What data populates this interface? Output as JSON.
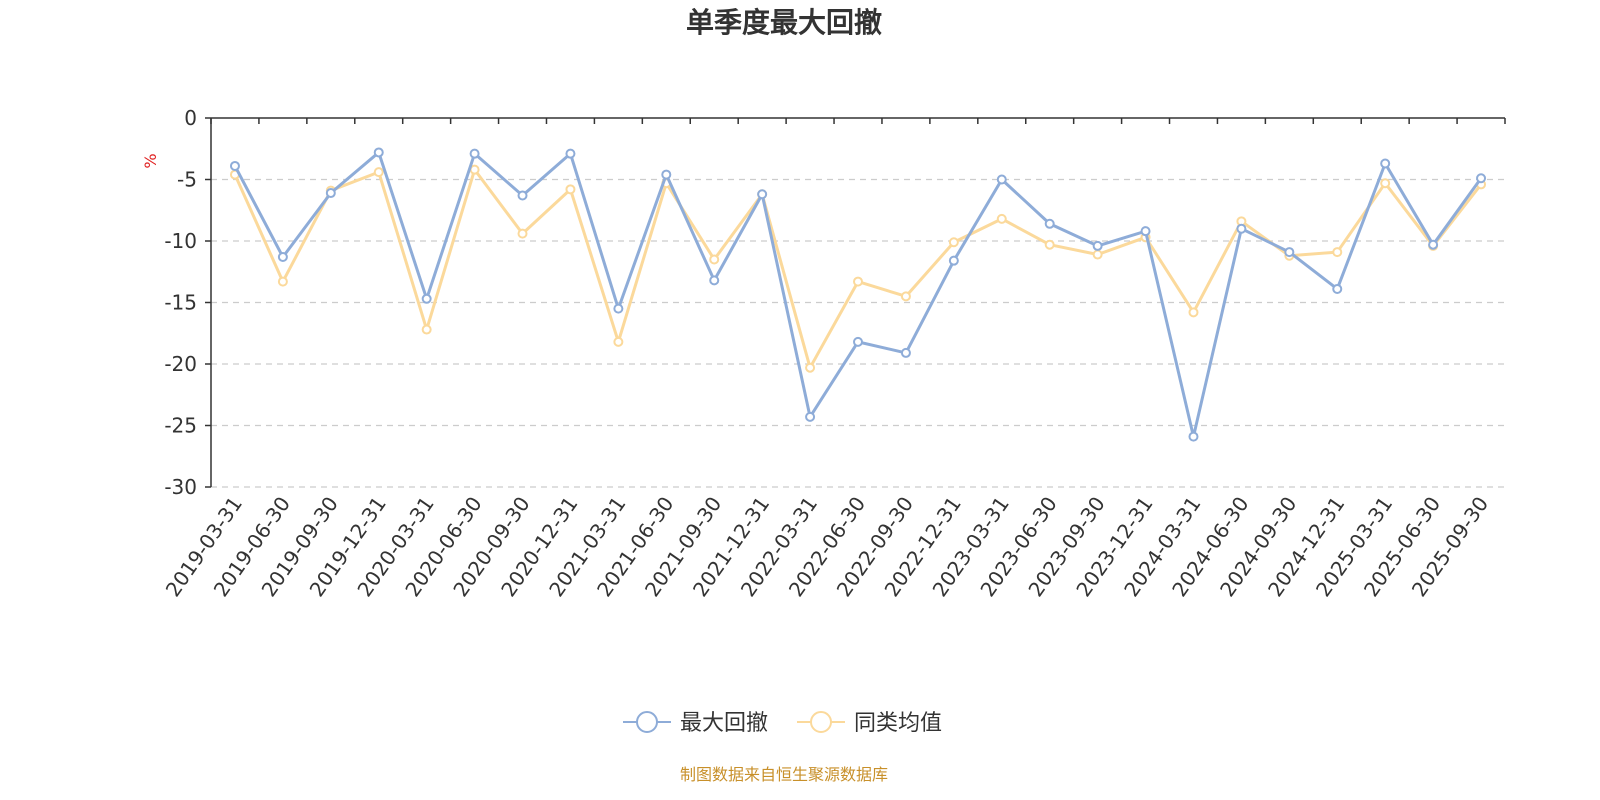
{
  "chart_data": {
    "type": "line",
    "title": "单季度最大回撤",
    "ylabel": "%",
    "ylim": [
      -30,
      0
    ],
    "yticks": [
      0,
      -5,
      -10,
      -15,
      -20,
      -25,
      -30
    ],
    "grid": true,
    "legend_placement": "bottom-center",
    "categories": [
      "2019-03-31",
      "2019-06-30",
      "2019-09-30",
      "2019-12-31",
      "2020-03-31",
      "2020-06-30",
      "2020-09-30",
      "2020-12-31",
      "2021-03-31",
      "2021-06-30",
      "2021-09-30",
      "2021-12-31",
      "2022-03-31",
      "2022-06-30",
      "2022-09-30",
      "2022-12-31",
      "2023-03-31",
      "2023-06-30",
      "2023-09-30",
      "2023-12-31",
      "2024-03-31",
      "2024-06-30",
      "2024-09-30",
      "2024-12-31",
      "2025-03-31",
      "2025-06-30",
      "2025-09-30"
    ],
    "series": [
      {
        "name": "最大回撤",
        "color": "#8eacd8",
        "values": [
          -3.9,
          -11.3,
          -6.1,
          -2.8,
          -14.7,
          -2.9,
          -6.3,
          -2.9,
          -15.5,
          -4.6,
          -13.2,
          -6.2,
          -24.3,
          -18.2,
          -19.1,
          -11.6,
          -5.0,
          -8.6,
          -10.4,
          -9.2,
          -25.9,
          -9.0,
          -10.9,
          -13.9,
          -3.7,
          -10.3,
          -4.9
        ]
      },
      {
        "name": "同类均值",
        "color": "#fbd99b",
        "values": [
          -4.6,
          -13.3,
          -5.9,
          -4.4,
          -17.2,
          -4.2,
          -9.4,
          -5.8,
          -18.2,
          -5.3,
          -11.5,
          -6.2,
          -20.3,
          -13.3,
          -14.5,
          -10.1,
          -8.2,
          -10.3,
          -11.1,
          -9.7,
          -15.8,
          -8.4,
          -11.2,
          -10.9,
          -5.3,
          -10.4,
          -5.4
        ]
      }
    ]
  },
  "footer": {
    "source_text": "制图数据来自恒生聚源数据库"
  }
}
